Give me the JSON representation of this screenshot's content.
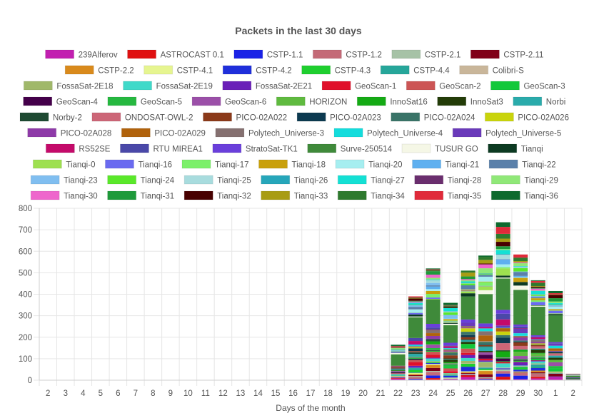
{
  "chart_data": {
    "type": "bar",
    "stacked": true,
    "title": "Packets in the last 30 days",
    "xlabel": "Days of the month",
    "ylabel": "",
    "ylim": [
      0,
      800
    ],
    "yticks": [
      0,
      100,
      200,
      300,
      400,
      500,
      600,
      700,
      800
    ],
    "grid": true,
    "legend_position": "top",
    "categories": [
      "2",
      "3",
      "4",
      "5",
      "6",
      "7",
      "8",
      "9",
      "10",
      "11",
      "12",
      "13",
      "14",
      "15",
      "16",
      "17",
      "18",
      "19",
      "20",
      "21",
      "22",
      "23",
      "24",
      "25",
      "26",
      "27",
      "28",
      "29",
      "30",
      "1",
      "2"
    ],
    "series_names": [
      "239Alferov",
      "ASTROCAST 0.1",
      "CSTP-1.1",
      "CSTP-1.2",
      "CSTP-2.1",
      "CSTP-2.11",
      "CSTP-2.2",
      "CSTP-4.1",
      "CSTP-4.2",
      "CSTP-4.3",
      "CSTP-4.4",
      "Colibri-S",
      "FossaSat-2E18",
      "FossaSat-2E19",
      "FossaSat-2E21",
      "GeoScan-1",
      "GeoScan-2",
      "GeoScan-3",
      "GeoScan-4",
      "GeoScan-5",
      "GeoScan-6",
      "HORIZON",
      "InnoSat16",
      "InnoSat3",
      "Norbi",
      "Norby-2",
      "ONDOSAT-OWL-2",
      "PICO-02A022",
      "PICO-02A023",
      "PICO-02A024",
      "PICO-02A026",
      "PICO-02A028",
      "PICO-02A029",
      "Polytech_Universe-3",
      "Polytech_Universe-4",
      "Polytech_Universe-5",
      "RS52SE",
      "RTU MIREA1",
      "StratoSat-TK1",
      "Surve-250514",
      "TUSUR GO",
      "Tianqi",
      "Tianqi-0",
      "Tianqi-16",
      "Tianqi-17",
      "Tianqi-18",
      "Tianqi-20",
      "Tianqi-21",
      "Tianqi-22",
      "Tianqi-23",
      "Tianqi-24",
      "Tianqi-25",
      "Tianqi-26",
      "Tianqi-27",
      "Tianqi-28",
      "Tianqi-29",
      "Tianqi-30",
      "Tianqi-31",
      "Tianqi-32",
      "Tianqi-33",
      "Tianqi-34",
      "Tianqi-35",
      "Tianqi-36"
    ],
    "series_colors": [
      "#c21fb0",
      "#e01010",
      "#1a22e6",
      "#c46a77",
      "#a6c2a6",
      "#800018",
      "#d98a1c",
      "#e6f590",
      "#1f2fdb",
      "#1fcf2f",
      "#26a69a",
      "#c9b69a",
      "#a0b86a",
      "#40d9c9",
      "#6a1fb8",
      "#e0102a",
      "#cc5555",
      "#12c83a",
      "#44004a",
      "#26b840",
      "#9b4fa8",
      "#5fba3f",
      "#14aa14",
      "#233c08",
      "#2aabab",
      "#1e4a32",
      "#cc6677",
      "#8b3a1a",
      "#0c3a50",
      "#3a7468",
      "#c9d40c",
      "#8e3aa8",
      "#b0620c",
      "#857070",
      "#14dcdc",
      "#6a3aba",
      "#c40a6a",
      "#4a48a8",
      "#6a3fdb",
      "#3f8a3a",
      "#f5f7e6",
      "#0c3a22",
      "#9ee050",
      "#6a6af0",
      "#7cf06a",
      "#c9a00c",
      "#a6eef0",
      "#5fb0f0",
      "#5a80aa",
      "#80bef0",
      "#5ae82a",
      "#a8dcde",
      "#26a6ba",
      "#14e0d4",
      "#6a2e6e",
      "#90e878",
      "#ee66cc",
      "#1e9a3a",
      "#480000",
      "#a89c14",
      "#2e7a2e",
      "#e02a3a",
      "#0e6a2e"
    ],
    "totals": [
      0,
      0,
      0,
      0,
      0,
      0,
      0,
      0,
      0,
      0,
      0,
      0,
      0,
      0,
      0,
      0,
      0,
      0,
      0,
      0,
      165,
      390,
      520,
      360,
      510,
      580,
      735,
      585,
      465,
      415,
      30
    ]
  }
}
